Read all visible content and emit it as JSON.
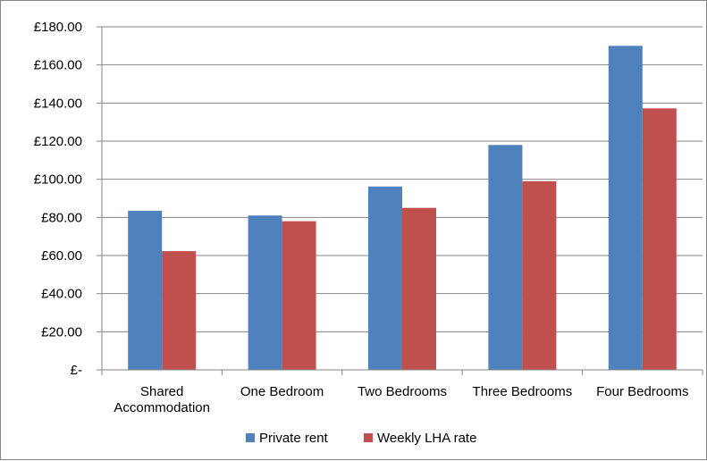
{
  "chart_data": {
    "type": "bar",
    "title": "",
    "xlabel": "",
    "ylabel": "",
    "categories": [
      "Shared Accommodation",
      "One Bedroom",
      "Two Bedrooms",
      "Three Bedrooms",
      "Four Bedrooms"
    ],
    "category_lines": [
      [
        "Shared",
        "Accommodation"
      ],
      [
        "One Bedroom"
      ],
      [
        "Two Bedrooms"
      ],
      [
        "Three Bedrooms"
      ],
      [
        "Four Bedrooms"
      ]
    ],
    "series": [
      {
        "name": "Private rent",
        "color": "#4F81BD",
        "values": [
          83.5,
          81,
          96.2,
          118,
          170
        ]
      },
      {
        "name": "Weekly LHA rate",
        "color": "#C0504D",
        "values": [
          62.3,
          78,
          85,
          99,
          137.2
        ]
      }
    ],
    "ylim": [
      0,
      180
    ],
    "yticks": [
      0,
      20,
      40,
      60,
      80,
      100,
      120,
      140,
      160,
      180
    ],
    "ytick_labels": [
      "£-",
      "£20.00",
      "£40.00",
      "£60.00",
      "£80.00",
      "£100.00",
      "£120.00",
      "£140.00",
      "£160.00",
      "£180.00"
    ],
    "grid": true,
    "legend": "bottom"
  }
}
